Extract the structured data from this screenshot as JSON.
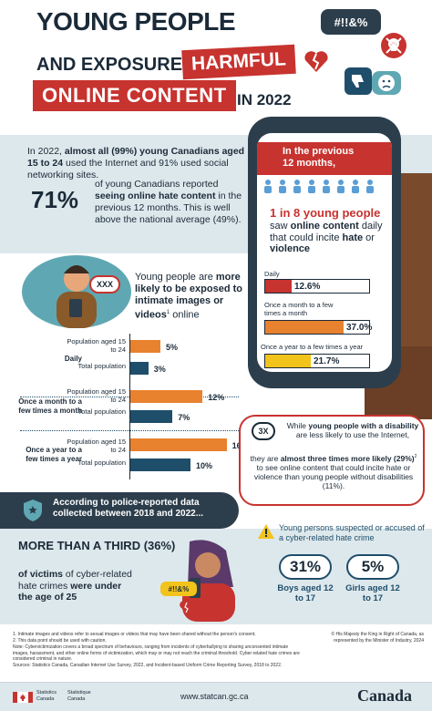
{
  "header": {
    "title_line1": "YOUNG PEOPLE",
    "title_line2": "AND EXPOSURE TO",
    "title_harmful": "HARMFUL",
    "title_online": "ONLINE CONTENT",
    "title_year": "IN 2022",
    "bubble_symbols": "#!!&%"
  },
  "intro": {
    "text_pre": "In 2022, ",
    "text_bold": "almost all (99%) young Canadians aged 15 to 24",
    "text_post": " used the Internet and 91% used social networking sites.",
    "stat": "71%",
    "stat_pre": "of young Canadians reported ",
    "stat_bold": "seeing online hate content",
    "stat_post": " in the previous 12 months. This is well above the national average (49%)."
  },
  "phone": {
    "banner": "In the previous 12 months,",
    "headline": "1 in 8 young people",
    "sub_pre": "saw ",
    "sub_bold1": "online content",
    "sub_mid": " daily that could incite ",
    "sub_bold2": "hate",
    "sub_or": " or ",
    "sub_bold3": "violence",
    "bars": [
      {
        "label": "Daily",
        "value": "12.6%",
        "pct": 12.6,
        "color": "#c7332f"
      },
      {
        "label": "Once a month to a few times a month",
        "value": "37.0%",
        "pct": 37.0,
        "color": "#e8822e"
      },
      {
        "label": "Once a year to a few times a year",
        "value": "21.7%",
        "pct": 21.7,
        "color": "#f2c31b"
      }
    ]
  },
  "exposure": {
    "badge": "XXX",
    "text_pre": "Young people are ",
    "text_bold": "more likely to be exposed to intimate images or videos",
    "text_sup": "1",
    "text_post": " online"
  },
  "chart_data": {
    "type": "bar",
    "categories": [
      "Daily",
      "Once a month to a few times a month",
      "Once a year to a few times a year"
    ],
    "series": [
      {
        "name": "Population aged 15 to 24",
        "values": [
          5,
          12,
          16
        ],
        "color": "#e8822e"
      },
      {
        "name": "Total population",
        "values": [
          3,
          7,
          10
        ],
        "color": "#1f4e6b"
      }
    ],
    "value_labels": {
      "Population aged 15 to 24": [
        "5%",
        "12%",
        "16%"
      ],
      "Total population": [
        "3%",
        "7%",
        "10%"
      ]
    }
  },
  "disability": {
    "badge": "3X",
    "text1_pre": "While ",
    "text1_bold": "young people with a disability",
    "text1_post": " are less likely to use the Internet,",
    "text2_pre": "they are ",
    "text2_bold": "almost three times more likely (29%)",
    "text2_sup": "2",
    "text2_post": " to see online content that could incite hate or violence than young people without disabilities (11%)."
  },
  "police": {
    "banner": "According to police-reported data collected between 2018 and 2022...",
    "third_title": "MORE THAN A THIRD (36%)",
    "third_pre": "of victims",
    "third_mid": " of cyber-related hate crimes ",
    "third_bold": "were under the age of 25",
    "phone_tag": "#!!&%",
    "suspects_title": "Young persons suspected or accused of a cyber-related hate crime",
    "boys_pct": "31%",
    "boys_label": "Boys aged 12 to 17",
    "girls_pct": "5%",
    "girls_label": "Girls aged 12 to 17"
  },
  "footnotes": {
    "n1": "1. Intimate images and videos refer to sexual images or videos that may have been shared without the person's consent.",
    "n2": "2. This data point should be used with caution.",
    "note": "Note: Cybervictimization covers a broad spectrum of behaviours, ranging from incidents of cyberbullying to sharing unconsented intimate images, harassment, and other online forms of victimization, which may or may not reach the criminal threshold. Cyber-related hate crimes are considered criminal in nature.",
    "sources": "Sources: Statistics Canada, Canadian Internet Use Survey, 2022, and Incident-based Uniform Crime Reporting Survey, 2018 to 2022.",
    "copyright": "© His Majesty the King in Right of Canada, as represented by the Minister of Industry, 2024"
  },
  "footer": {
    "statcan_en": "Statistics Canada",
    "statcan_fr": "Statistique Canada",
    "url": "www.statcan.gc.ca",
    "wordmark": "Canada"
  }
}
